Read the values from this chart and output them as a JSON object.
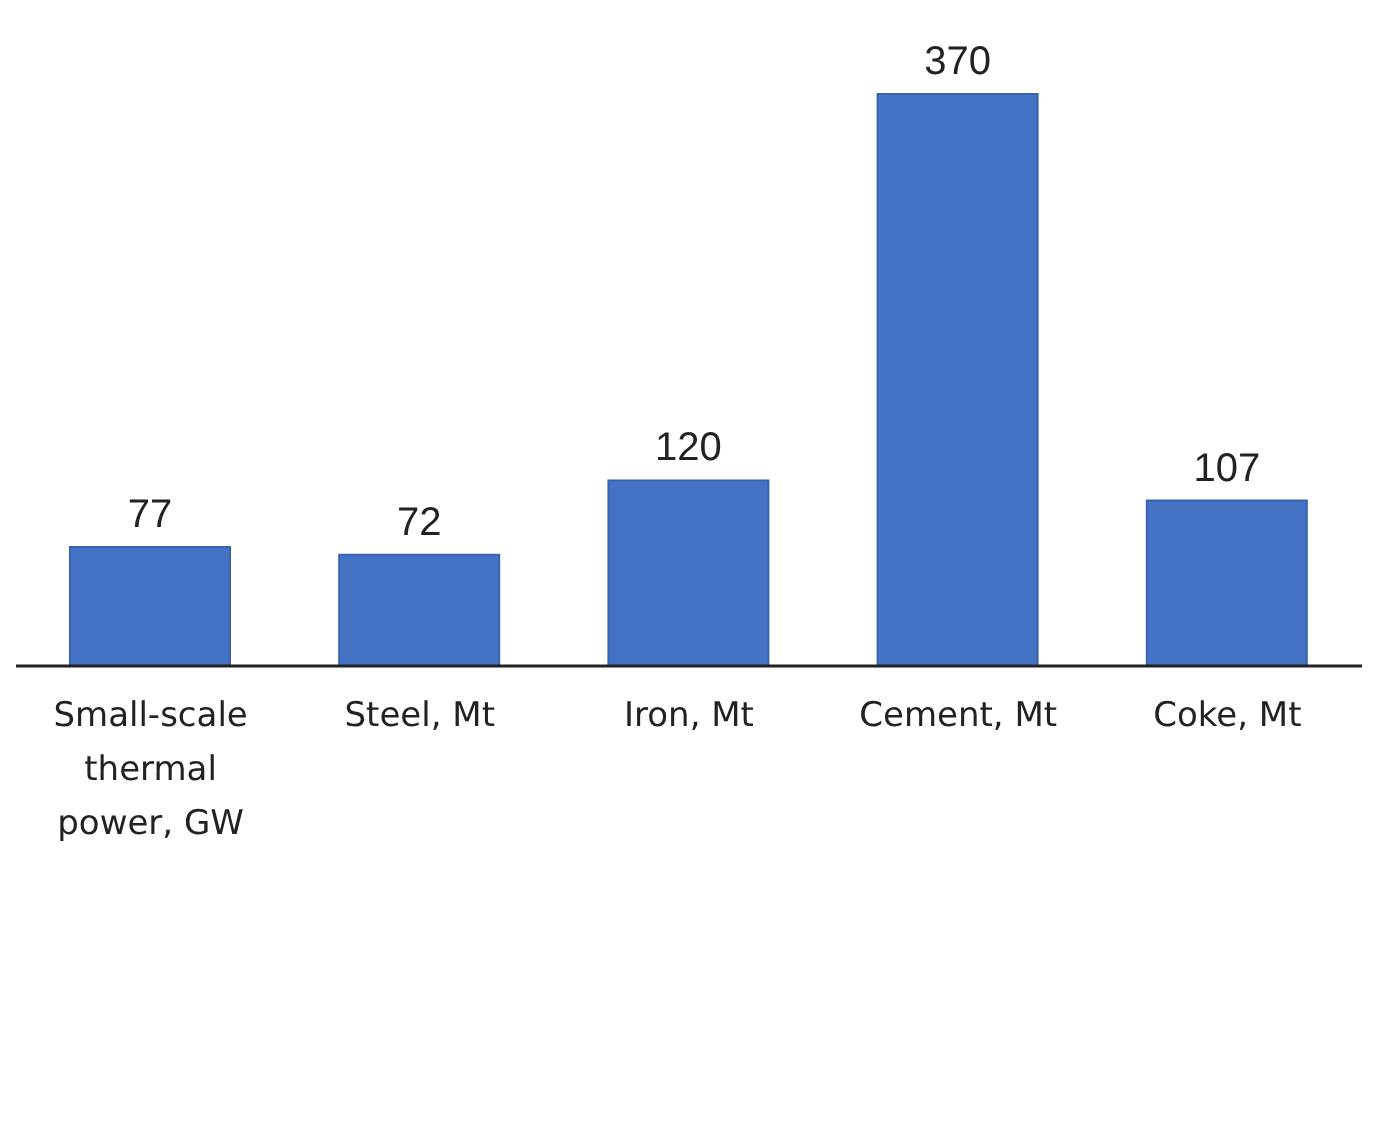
{
  "chart_data": {
    "type": "bar",
    "categories": [
      "Small-scale thermal power, GW",
      "Steel, Mt",
      "Iron, Mt",
      "Cement, Mt",
      "Coke, Mt"
    ],
    "values": [
      77,
      72,
      120,
      370,
      107
    ],
    "color": "#4472c4",
    "data_labels": true,
    "grid": false,
    "legend": false
  }
}
